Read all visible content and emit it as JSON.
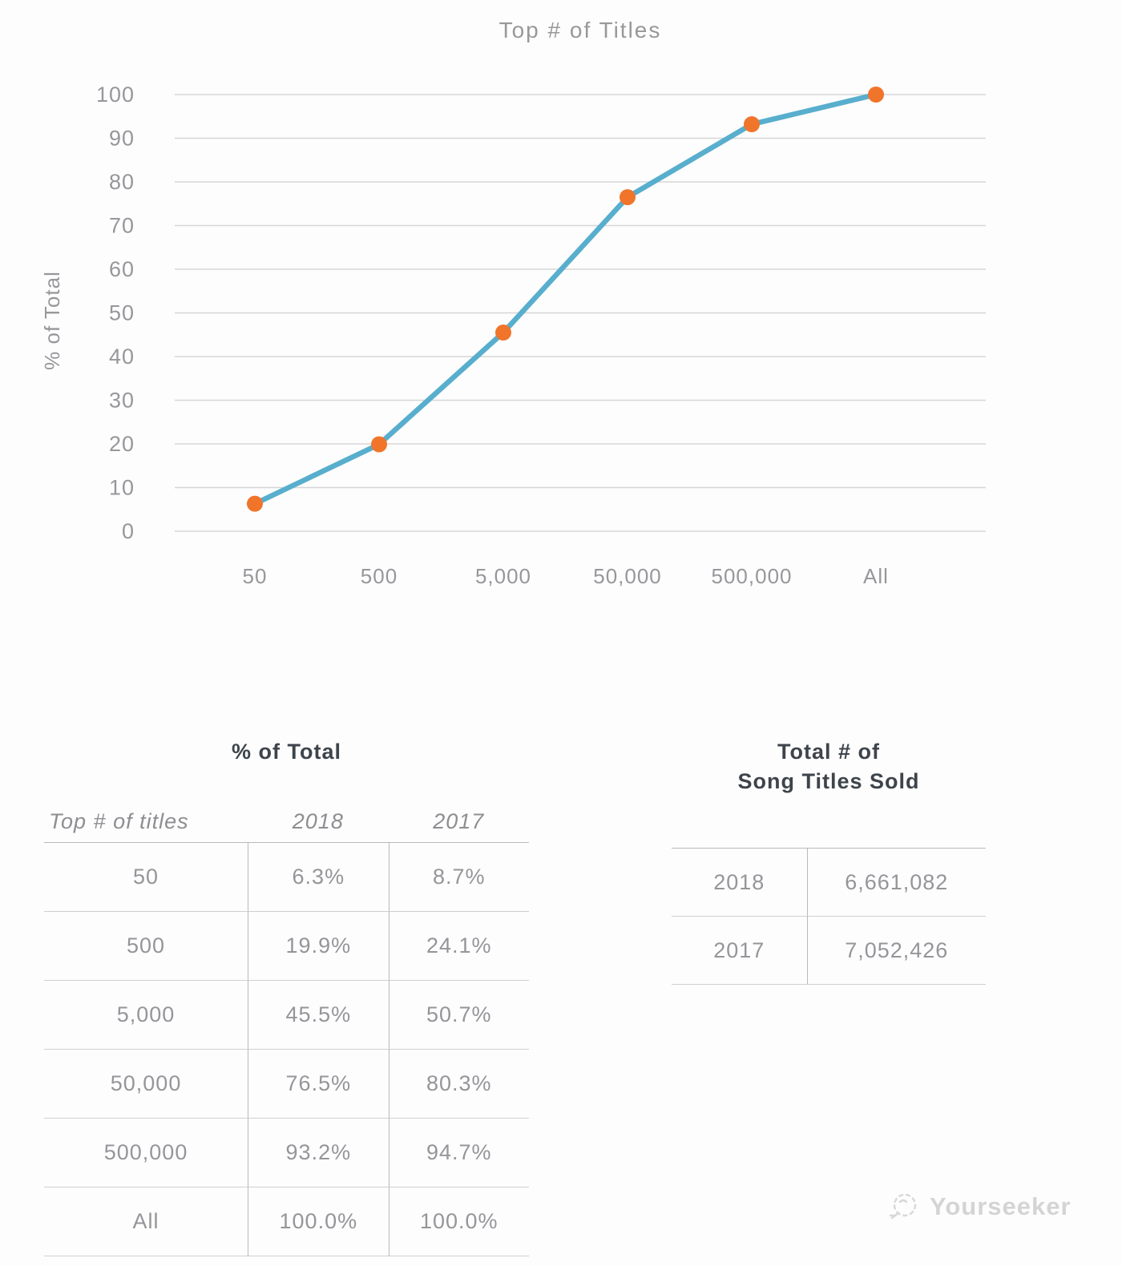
{
  "chart_data": {
    "type": "line",
    "title": "Top # of Titles",
    "xlabel": "",
    "ylabel": "% of Total",
    "categories": [
      "50",
      "500",
      "5,000",
      "50,000",
      "500,000",
      "All"
    ],
    "series": [
      {
        "name": "2018",
        "values": [
          6.3,
          19.9,
          45.5,
          76.5,
          93.2,
          100.0
        ]
      }
    ],
    "ylim": [
      0,
      100
    ],
    "yticks": [
      0,
      10,
      20,
      30,
      40,
      50,
      60,
      70,
      80,
      90,
      100
    ],
    "grid": true,
    "legend": false,
    "line_color": "#58aecd",
    "point_color": "#f0752b",
    "grid_color": "#d6d6d6",
    "label_color": "#97979b"
  },
  "left_table": {
    "title": "% of Total",
    "headers": [
      "Top # of titles",
      "2018",
      "2017"
    ],
    "rows": [
      [
        "50",
        "6.3%",
        "8.7%"
      ],
      [
        "500",
        "19.9%",
        "24.1%"
      ],
      [
        "5,000",
        "45.5%",
        "50.7%"
      ],
      [
        "50,000",
        "76.5%",
        "80.3%"
      ],
      [
        "500,000",
        "93.2%",
        "94.7%"
      ],
      [
        "All",
        "100.0%",
        "100.0%"
      ]
    ]
  },
  "right_table": {
    "title_line1": "Total # of",
    "title_line2": "Song Titles Sold",
    "rows": [
      [
        "2018",
        "6,661,082"
      ],
      [
        "2017",
        "7,052,426"
      ]
    ]
  },
  "watermark": {
    "text": "Yourseeker"
  }
}
